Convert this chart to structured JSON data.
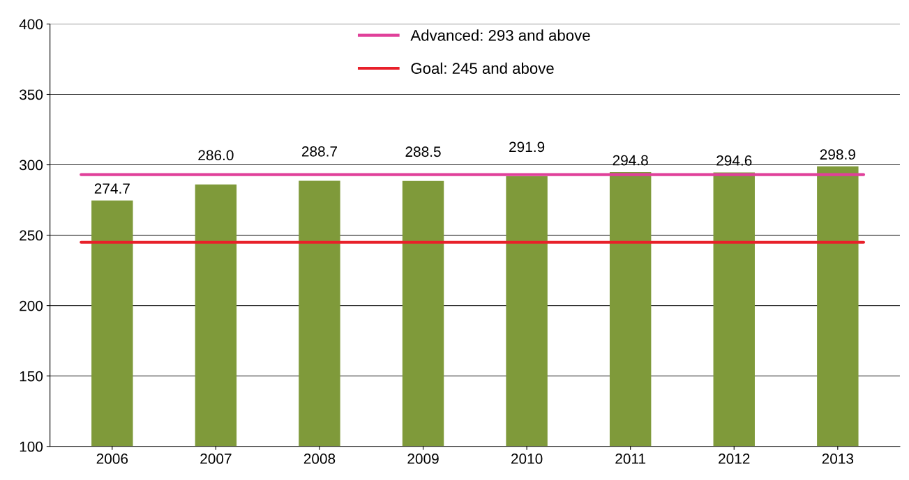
{
  "chart_data": {
    "type": "bar",
    "categories": [
      "2006",
      "2007",
      "2008",
      "2009",
      "2010",
      "2011",
      "2012",
      "2013"
    ],
    "values": [
      274.7,
      286.0,
      288.7,
      288.5,
      291.9,
      294.8,
      294.6,
      298.9
    ],
    "color": "#7f9a3a",
    "value_labels": [
      "274.7",
      "286.0",
      "288.7",
      "288.5",
      "291.9",
      "294.8",
      "294.6",
      "298.9"
    ],
    "ylim": [
      100,
      400
    ],
    "yticks": [
      100,
      150,
      200,
      250,
      300,
      350,
      400
    ],
    "grid": "y",
    "legend": "top",
    "ref_lines": [
      {
        "axis": "y",
        "value": 293,
        "label": "Advanced: 293 and above",
        "color": "#e0409a"
      },
      {
        "axis": "y",
        "value": 245,
        "label": "Goal: 245 and above",
        "color": "#e8202a"
      }
    ]
  }
}
